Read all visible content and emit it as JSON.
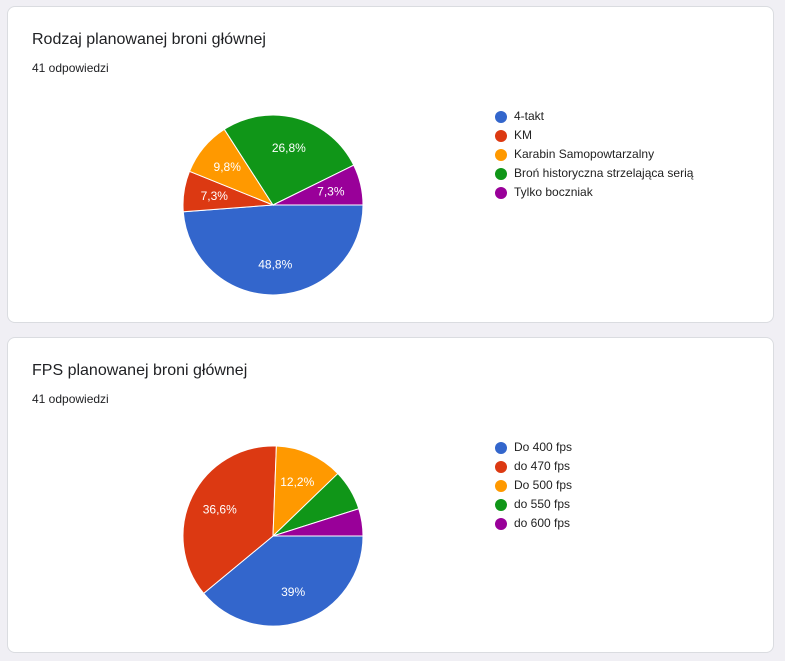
{
  "questions": [
    {
      "title": "Rodzaj planowanej broni głównej",
      "responses": "41 odpowiedzi",
      "chart_data": {
        "type": "pie",
        "categories": [
          "4-takt",
          "KM",
          "Karabin Samopowtarzalny",
          "Broń historyczna strzelająca serią",
          "Tylko boczniak"
        ],
        "values": [
          48.8,
          7.3,
          9.8,
          26.8,
          7.3
        ],
        "labels": [
          "48,8%",
          "7,3%",
          "9,8%",
          "26,8%",
          "7,3%"
        ],
        "colors": [
          "#3366cc",
          "#dc3912",
          "#ff9900",
          "#109618",
          "#990099"
        ],
        "legend_position": "right"
      }
    },
    {
      "title": "FPS planowanej broni głównej",
      "responses": "41 odpowiedzi",
      "chart_data": {
        "type": "pie",
        "categories": [
          "Do 400 fps",
          "do 470 fps",
          "Do 500 fps",
          "do 550 fps",
          "do 600 fps"
        ],
        "values": [
          39.0,
          36.6,
          12.2,
          7.3,
          4.9
        ],
        "labels": [
          "39%",
          "36,6%",
          "12,2%",
          "",
          ""
        ],
        "colors": [
          "#3366cc",
          "#dc3912",
          "#ff9900",
          "#109618",
          "#990099"
        ],
        "legend_position": "right"
      }
    }
  ]
}
